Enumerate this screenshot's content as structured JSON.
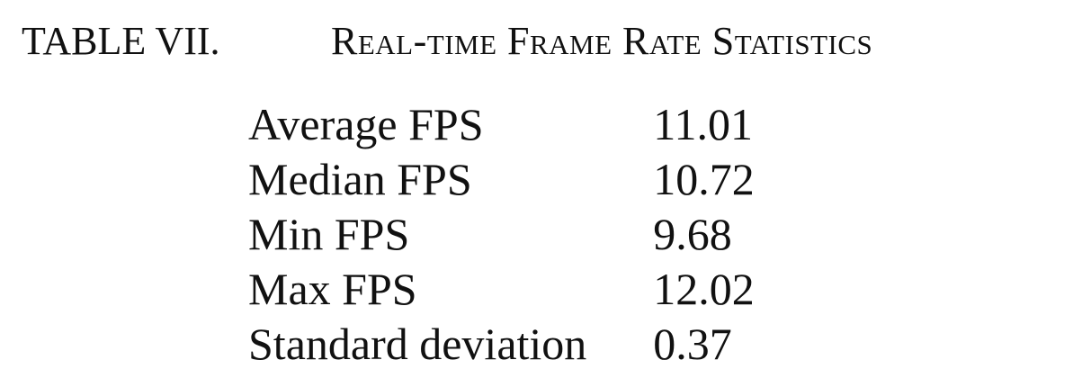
{
  "table": {
    "label": "TABLE VII.",
    "title": "Real-time Frame Rate Statistics",
    "rows": [
      {
        "metric": "Average FPS",
        "value": "11.01"
      },
      {
        "metric": "Median FPS",
        "value": "10.72"
      },
      {
        "metric": "Min FPS",
        "value": "9.68"
      },
      {
        "metric": "Max FPS",
        "value": "12.02"
      },
      {
        "metric": "Standard deviation",
        "value": "0.37"
      }
    ]
  }
}
